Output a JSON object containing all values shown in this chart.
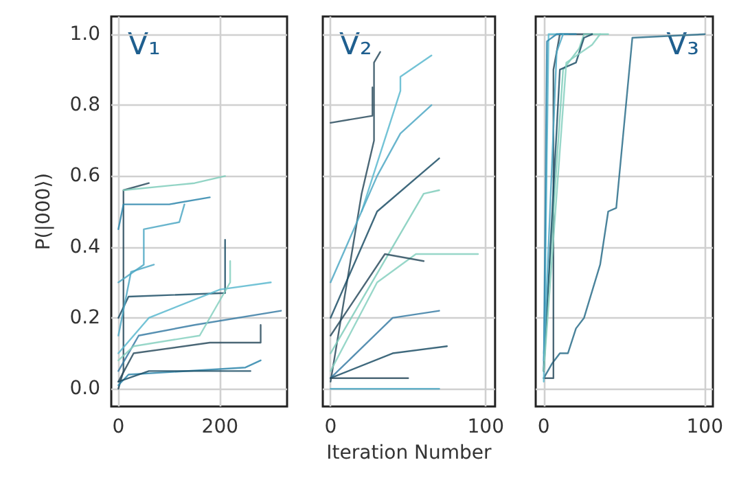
{
  "chart_data": [
    {
      "type": "line",
      "annotations": [
        "V₁"
      ],
      "ylabel": "P(|000⟩)",
      "xlim": [
        -14,
        332
      ],
      "xticks": [
        0,
        200
      ],
      "ylim": [
        -0.05,
        1.05
      ],
      "yticks": [
        {
          "value": 0,
          "label": "0.0"
        },
        0.2,
        0.4,
        0.6,
        0.8,
        {
          "value": 1,
          "label": "1.0"
        }
      ],
      "grid": true,
      "marker": "none",
      "series": [
        {
          "color": "#2b4c5e",
          "x": [
            0,
            10,
            10,
            60
          ],
          "values": [
            0,
            0.05,
            0.56,
            0.58
          ]
        },
        {
          "color": "#7fcdbb",
          "x": [
            10,
            150,
            210
          ],
          "values": [
            0.56,
            0.58,
            0.6
          ]
        },
        {
          "color": "#2e86ab",
          "x": [
            0,
            10,
            100,
            180
          ],
          "values": [
            0.45,
            0.52,
            0.52,
            0.54
          ]
        },
        {
          "color": "#4fa8c4",
          "x": [
            0,
            50,
            50,
            120,
            130
          ],
          "values": [
            0.3,
            0.35,
            0.45,
            0.47,
            0.52
          ]
        },
        {
          "color": "#1d4f66",
          "x": [
            0,
            20,
            210,
            210
          ],
          "values": [
            0.2,
            0.26,
            0.27,
            0.42
          ]
        },
        {
          "color": "#5bb8cf",
          "x": [
            0,
            60,
            200,
            300
          ],
          "values": [
            0.1,
            0.2,
            0.28,
            0.3
          ]
        },
        {
          "color": "#3a7ca5",
          "x": [
            0,
            40,
            150,
            320
          ],
          "values": [
            0.05,
            0.15,
            0.18,
            0.22
          ]
        },
        {
          "color": "#2b4c5e",
          "x": [
            0,
            30,
            180,
            280,
            280
          ],
          "values": [
            0.02,
            0.1,
            0.13,
            0.13,
            0.18
          ]
        },
        {
          "color": "#86d0c0",
          "x": [
            0,
            30,
            160,
            220,
            220
          ],
          "values": [
            0.08,
            0.12,
            0.15,
            0.3,
            0.36
          ]
        },
        {
          "color": "#2e86ab",
          "x": [
            0,
            20,
            250,
            280
          ],
          "values": [
            0.01,
            0.04,
            0.06,
            0.08
          ]
        },
        {
          "color": "#1d4f66",
          "x": [
            0,
            60,
            260
          ],
          "values": [
            0.02,
            0.05,
            0.05
          ]
        },
        {
          "color": "#4fa8c4",
          "x": [
            0,
            25,
            70
          ],
          "values": [
            0.15,
            0.33,
            0.35
          ]
        }
      ]
    },
    {
      "type": "line",
      "annotations": [
        "V₂"
      ],
      "xlabel": "Iteration Number",
      "xlim": [
        -5,
        106
      ],
      "xticks": [
        0,
        100
      ],
      "ylim": [
        -0.05,
        1.05
      ],
      "yticks": [
        {
          "value": 0,
          "label": null
        },
        {
          "value": 0.2,
          "label": null
        },
        {
          "value": 0.4,
          "label": null
        },
        {
          "value": 0.6,
          "label": null
        },
        {
          "value": 0.8,
          "label": null
        },
        {
          "value": 1,
          "label": null
        }
      ],
      "tick_labels": "x",
      "grid": true,
      "marker": "none",
      "series": [
        {
          "color": "#2b4c5e",
          "x": [
            0,
            20,
            28,
            28,
            32
          ],
          "values": [
            0.02,
            0.55,
            0.7,
            0.92,
            0.95
          ]
        },
        {
          "color": "#5bb8cf",
          "x": [
            20,
            45,
            45,
            65
          ],
          "values": [
            0.5,
            0.84,
            0.88,
            0.94
          ]
        },
        {
          "color": "#2b4c5e",
          "x": [
            0,
            27,
            27
          ],
          "values": [
            0.75,
            0.77,
            0.85
          ]
        },
        {
          "color": "#4fa8c4",
          "x": [
            0,
            30,
            45,
            65
          ],
          "values": [
            0.3,
            0.6,
            0.72,
            0.8
          ]
        },
        {
          "color": "#1d4f66",
          "x": [
            0,
            30,
            70
          ],
          "values": [
            0.2,
            0.5,
            0.65
          ]
        },
        {
          "color": "#7fcdbb",
          "x": [
            0,
            40,
            60,
            70
          ],
          "values": [
            0.1,
            0.4,
            0.55,
            0.56
          ]
        },
        {
          "color": "#86d0c0",
          "x": [
            0,
            30,
            55,
            95
          ],
          "values": [
            0.05,
            0.3,
            0.38,
            0.38
          ]
        },
        {
          "color": "#2b4c5e",
          "x": [
            0,
            35,
            60
          ],
          "values": [
            0.15,
            0.38,
            0.36
          ]
        },
        {
          "color": "#3a7ca5",
          "x": [
            0,
            40,
            70
          ],
          "values": [
            0.03,
            0.2,
            0.22
          ]
        },
        {
          "color": "#1d4f66",
          "x": [
            0,
            40,
            75
          ],
          "values": [
            0.03,
            0.1,
            0.12
          ]
        },
        {
          "color": "#4fa8c4",
          "x": [
            0,
            70
          ],
          "values": [
            0,
            0
          ]
        },
        {
          "color": "#2b4c5e",
          "x": [
            0,
            50
          ],
          "values": [
            0.03,
            0.03
          ]
        }
      ]
    },
    {
      "type": "line",
      "annotations": [
        "V₃"
      ],
      "xlim": [
        -5,
        105
      ],
      "xticks": [
        0,
        100
      ],
      "ylim": [
        -0.05,
        1.05
      ],
      "yticks": [
        {
          "value": 0,
          "label": null
        },
        {
          "value": 0.2,
          "label": null
        },
        {
          "value": 0.4,
          "label": null
        },
        {
          "value": 0.6,
          "label": null
        },
        {
          "value": 0.8,
          "label": null
        },
        {
          "value": 1,
          "label": null
        }
      ],
      "tick_labels": "x",
      "grid": true,
      "marker": "none",
      "series": [
        {
          "color": "#2a6d8a",
          "x": [
            0,
            5,
            10,
            15,
            20,
            25,
            35,
            40,
            45,
            55,
            100
          ],
          "values": [
            0.03,
            0.07,
            0.1,
            0.1,
            0.17,
            0.2,
            0.35,
            0.5,
            0.51,
            0.99,
            1
          ]
        },
        {
          "color": "#2b4c5e",
          "x": [
            0,
            6,
            6,
            10,
            30
          ],
          "values": [
            0.03,
            0.03,
            0.9,
            1,
            1
          ]
        },
        {
          "color": "#5bb8cf",
          "x": [
            0,
            3,
            15
          ],
          "values": [
            0.02,
            1,
            1
          ]
        },
        {
          "color": "#7fcdbb",
          "x": [
            0,
            12,
            22,
            25,
            40
          ],
          "values": [
            0.1,
            0.9,
            0.96,
            1,
            1
          ]
        },
        {
          "color": "#2e86ab",
          "x": [
            0,
            2,
            8,
            20
          ],
          "values": [
            0.05,
            0.98,
            1,
            1
          ]
        },
        {
          "color": "#1d4f66",
          "x": [
            0,
            10,
            20,
            25,
            30
          ],
          "values": [
            0.05,
            0.9,
            0.92,
            0.99,
            1
          ]
        },
        {
          "color": "#4fa8c4",
          "x": [
            0,
            8,
            12
          ],
          "values": [
            0.08,
            0.95,
            1
          ]
        },
        {
          "color": "#86d0c0",
          "x": [
            0,
            14,
            30,
            35
          ],
          "values": [
            0.05,
            0.92,
            0.97,
            1
          ]
        }
      ]
    }
  ]
}
